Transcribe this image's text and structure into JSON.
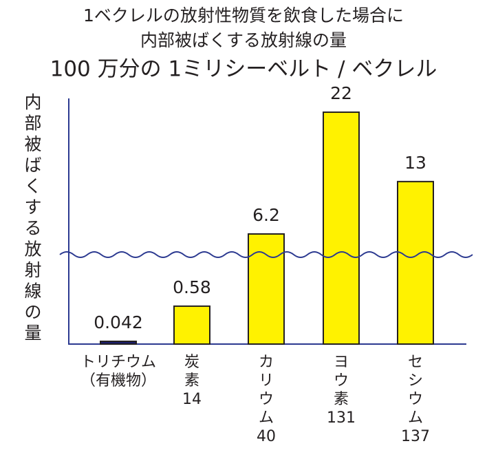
{
  "chart_data": {
    "type": "bar",
    "title": [
      "1ベクレルの放射性物質を飲食した場合に",
      "内部被ばくする放射線の量",
      "100 万分の 1ミリシーベルト / ベクレル"
    ],
    "y_label": [
      "内",
      "部",
      "被",
      "ば",
      "く",
      "す",
      "る",
      "放",
      "射",
      "線",
      "の",
      "量"
    ],
    "categories": [
      [
        "トリチウム",
        "（有機物）"
      ],
      [
        "炭",
        "素",
        "14"
      ],
      [
        "カ",
        "リ",
        "ウ",
        "ム",
        "40"
      ],
      [
        "ヨ",
        "ウ",
        "素",
        "131"
      ],
      [
        "セ",
        "シ",
        "ウ",
        "ム",
        "137"
      ]
    ],
    "values": [
      0.042,
      0.58,
      6.2,
      22,
      13
    ],
    "colors": [
      "#1c1f6e",
      "#fff200",
      "#fff200",
      "#fff200",
      "#fff200"
    ],
    "axis_break": true
  }
}
